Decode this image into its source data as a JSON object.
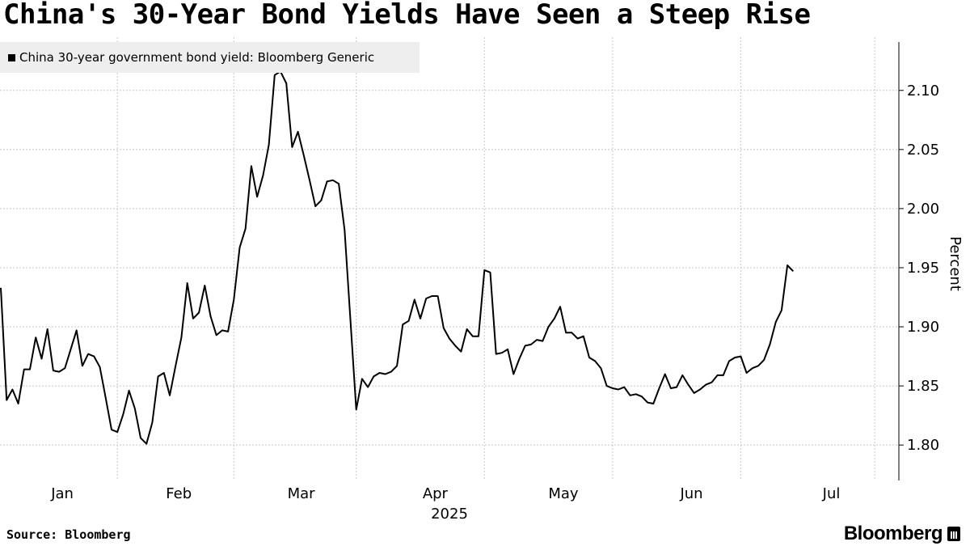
{
  "title": "China's 30-Year Bond Yields Have Seen a Steep Rise",
  "source": "Source: Bloomberg",
  "brand": "Bloomberg",
  "colors": {
    "line": "#000000",
    "grid": "#bbbbbb",
    "legend_bg": "#eeeeee"
  },
  "chart_data": {
    "type": "line",
    "title": "China's 30-Year Bond Yields Have Seen a Steep Rise",
    "xlabel": "2025",
    "ylabel": "Percent",
    "ylim": [
      1.77,
      2.145
    ],
    "xlim": [
      0,
      154
    ],
    "y_ticks": [
      "1.80",
      "1.85",
      "1.90",
      "1.95",
      "2.00",
      "2.05",
      "2.10"
    ],
    "x_ticks": [
      {
        "label": "Jan",
        "x": 10
      },
      {
        "label": "Feb",
        "x": 30
      },
      {
        "label": "Mar",
        "x": 51
      },
      {
        "label": "Apr",
        "x": 74
      },
      {
        "label": "May",
        "x": 96
      },
      {
        "label": "Jun",
        "x": 118
      },
      {
        "label": "Jul",
        "x": 142
      }
    ],
    "grid": true,
    "legend_position": "top-left",
    "series": [
      {
        "name": "China 30-year government bond yield: Bloomberg Generic",
        "points": [
          [
            0,
            1.933
          ],
          [
            1,
            1.838
          ],
          [
            2,
            1.847
          ],
          [
            3,
            1.835
          ],
          [
            4,
            1.864
          ],
          [
            5,
            1.864
          ],
          [
            6,
            1.891
          ],
          [
            7,
            1.873
          ],
          [
            8,
            1.898
          ],
          [
            9,
            1.863
          ],
          [
            10,
            1.862
          ],
          [
            11,
            1.865
          ],
          [
            12,
            1.881
          ],
          [
            13,
            1.897
          ],
          [
            14,
            1.867
          ],
          [
            15,
            1.877
          ],
          [
            16,
            1.875
          ],
          [
            17,
            1.866
          ],
          [
            18,
            1.84
          ],
          [
            19,
            1.813
          ],
          [
            20,
            1.811
          ],
          [
            21,
            1.826
          ],
          [
            22,
            1.846
          ],
          [
            23,
            1.831
          ],
          [
            24,
            1.806
          ],
          [
            25,
            1.801
          ],
          [
            26,
            1.819
          ],
          [
            27,
            1.858
          ],
          [
            28,
            1.861
          ],
          [
            29,
            1.842
          ],
          [
            30,
            1.867
          ],
          [
            31,
            1.891
          ],
          [
            32,
            1.937
          ],
          [
            33,
            1.907
          ],
          [
            34,
            1.912
          ],
          [
            35,
            1.935
          ],
          [
            36,
            1.909
          ],
          [
            37,
            1.893
          ],
          [
            38,
            1.897
          ],
          [
            39,
            1.896
          ],
          [
            40,
            1.923
          ],
          [
            41,
            1.967
          ],
          [
            42,
            1.983
          ],
          [
            43,
            2.036
          ],
          [
            44,
            2.01
          ],
          [
            45,
            2.028
          ],
          [
            46,
            2.054
          ],
          [
            47,
            2.113
          ],
          [
            48,
            2.116
          ],
          [
            49,
            2.106
          ],
          [
            50,
            2.052
          ],
          [
            51,
            2.065
          ],
          [
            52,
            2.045
          ],
          [
            53,
            2.024
          ],
          [
            54,
            2.002
          ],
          [
            55,
            2.007
          ],
          [
            56,
            2.023
          ],
          [
            57,
            2.024
          ],
          [
            58,
            2.021
          ],
          [
            59,
            1.982
          ],
          [
            60,
            1.906
          ],
          [
            61,
            1.83
          ],
          [
            62,
            1.856
          ],
          [
            63,
            1.849
          ],
          [
            64,
            1.858
          ],
          [
            65,
            1.861
          ],
          [
            66,
            1.86
          ],
          [
            67,
            1.862
          ],
          [
            68,
            1.867
          ],
          [
            69,
            1.902
          ],
          [
            70,
            1.905
          ],
          [
            71,
            1.923
          ],
          [
            72,
            1.907
          ],
          [
            73,
            1.924
          ],
          [
            74,
            1.926
          ],
          [
            75,
            1.926
          ],
          [
            76,
            1.899
          ],
          [
            77,
            1.89
          ],
          [
            78,
            1.884
          ],
          [
            79,
            1.879
          ],
          [
            80,
            1.898
          ],
          [
            81,
            1.892
          ],
          [
            82,
            1.892
          ],
          [
            83,
            1.948
          ],
          [
            84,
            1.946
          ],
          [
            85,
            1.877
          ],
          [
            86,
            1.878
          ],
          [
            87,
            1.881
          ],
          [
            88,
            1.86
          ],
          [
            89,
            1.873
          ],
          [
            90,
            1.884
          ],
          [
            91,
            1.885
          ],
          [
            92,
            1.889
          ],
          [
            93,
            1.888
          ],
          [
            94,
            1.9
          ],
          [
            95,
            1.907
          ],
          [
            96,
            1.917
          ],
          [
            97,
            1.895
          ],
          [
            98,
            1.895
          ],
          [
            99,
            1.89
          ],
          [
            100,
            1.892
          ],
          [
            101,
            1.874
          ],
          [
            102,
            1.871
          ],
          [
            103,
            1.865
          ],
          [
            104,
            1.85
          ],
          [
            105,
            1.848
          ],
          [
            106,
            1.847
          ],
          [
            107,
            1.849
          ],
          [
            108,
            1.842
          ],
          [
            109,
            1.843
          ],
          [
            110,
            1.841
          ],
          [
            111,
            1.836
          ],
          [
            112,
            1.835
          ],
          [
            113,
            1.848
          ],
          [
            114,
            1.86
          ],
          [
            115,
            1.848
          ],
          [
            116,
            1.849
          ],
          [
            117,
            1.859
          ],
          [
            118,
            1.851
          ],
          [
            119,
            1.844
          ],
          [
            120,
            1.847
          ],
          [
            121,
            1.851
          ],
          [
            122,
            1.853
          ],
          [
            123,
            1.859
          ],
          [
            124,
            1.859
          ],
          [
            125,
            1.871
          ],
          [
            126,
            1.874
          ],
          [
            127,
            1.875
          ],
          [
            128,
            1.861
          ],
          [
            129,
            1.865
          ],
          [
            130,
            1.867
          ],
          [
            131,
            1.872
          ],
          [
            132,
            1.885
          ],
          [
            133,
            1.904
          ],
          [
            134,
            1.914
          ],
          [
            135,
            1.952
          ],
          [
            136,
            1.947
          ]
        ]
      }
    ]
  }
}
